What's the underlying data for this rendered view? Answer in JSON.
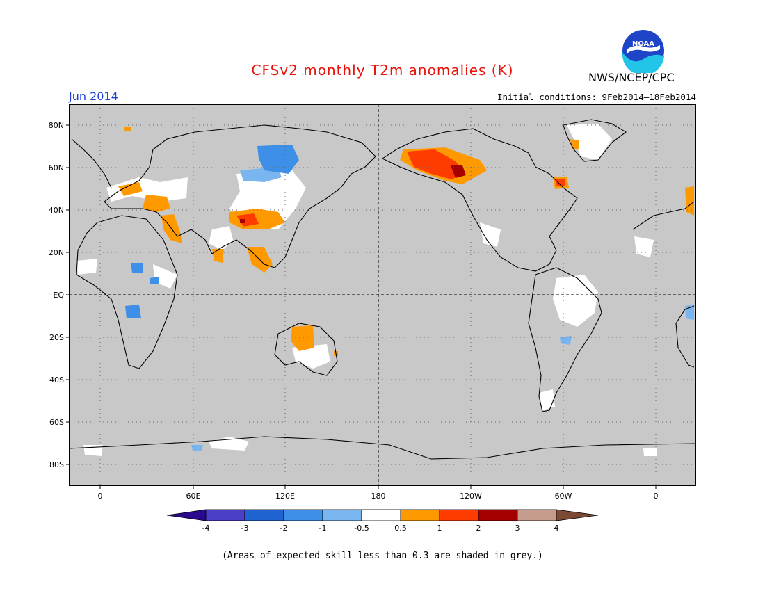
{
  "header": {
    "title": "CFSv2 monthly T2m anomalies (K)",
    "org": "NWS/NCEP/CPC",
    "month": "Jun 2014",
    "initial_conditions": "Initial conditions: 9Feb2014–18Feb2014"
  },
  "logo": {
    "text": "NOAA"
  },
  "map": {
    "lat_labels": [
      "80N",
      "60N",
      "40N",
      "20N",
      "EQ",
      "20S",
      "40S",
      "60S",
      "80S"
    ],
    "lon_labels": [
      "0",
      "60E",
      "120E",
      "180",
      "120W",
      "60W",
      "0"
    ]
  },
  "colorbar": {
    "labels": [
      "-4",
      "-3",
      "-2",
      "-1",
      "-0.5",
      "0.5",
      "1",
      "2",
      "3",
      "4"
    ],
    "colors": {
      "lt_minus4": "#2a0a8c",
      "m4_m3": "#4b3fc7",
      "m3_m2": "#1e63cf",
      "m2_m1": "#3d8fe8",
      "m1_m05": "#79b6f0",
      "m05_05": "#ffffff",
      "05_1": "#ff9900",
      "1_2": "#ff3c00",
      "2_3": "#a50000",
      "3_4": "#c69c8c",
      "gt4": "#7b4a35"
    }
  },
  "footer": {
    "note": "(Areas of expected skill less than 0.3 are shaded in grey.)"
  }
}
